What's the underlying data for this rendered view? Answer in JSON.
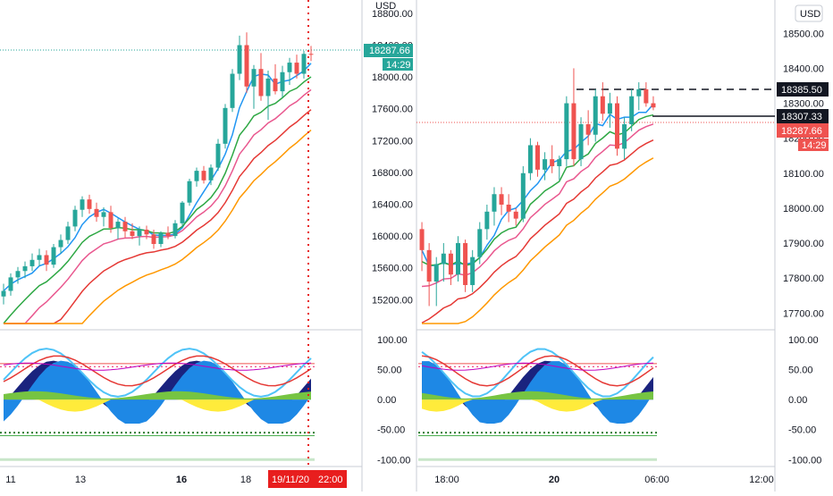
{
  "chart_data": [
    {
      "type": "candlestick",
      "currency": "USD",
      "x_ticks": [
        "11",
        "13",
        "16",
        "18"
      ],
      "y_ticks": [
        "18800.00",
        "18400.00",
        "18000.00",
        "17600.00",
        "17200.00",
        "16800.00",
        "16400.00",
        "16000.00",
        "15600.00",
        "15200.00"
      ],
      "ylim": [
        14900,
        18900
      ],
      "last_price": "18287.66",
      "countdown": "14:29",
      "crosshair_date": "19/11/20",
      "crosshair_time": "22:00",
      "ohlc": [
        {
          "o": 15240,
          "h": 15400,
          "l": 15140,
          "c": 15310
        },
        {
          "o": 15310,
          "h": 15530,
          "l": 15250,
          "c": 15480
        },
        {
          "o": 15480,
          "h": 15610,
          "l": 15400,
          "c": 15560
        },
        {
          "o": 15560,
          "h": 15680,
          "l": 15470,
          "c": 15620
        },
        {
          "o": 15620,
          "h": 15780,
          "l": 15560,
          "c": 15700
        },
        {
          "o": 15700,
          "h": 15840,
          "l": 15620,
          "c": 15760
        },
        {
          "o": 15760,
          "h": 15820,
          "l": 15560,
          "c": 15640
        },
        {
          "o": 15640,
          "h": 15900,
          "l": 15600,
          "c": 15860
        },
        {
          "o": 15860,
          "h": 16020,
          "l": 15780,
          "c": 15950
        },
        {
          "o": 15950,
          "h": 16180,
          "l": 15900,
          "c": 16120
        },
        {
          "o": 16120,
          "h": 16380,
          "l": 16060,
          "c": 16330
        },
        {
          "o": 16330,
          "h": 16500,
          "l": 16240,
          "c": 16460
        },
        {
          "o": 16460,
          "h": 16520,
          "l": 16280,
          "c": 16340
        },
        {
          "o": 16340,
          "h": 16420,
          "l": 16180,
          "c": 16240
        },
        {
          "o": 16240,
          "h": 16360,
          "l": 16120,
          "c": 16300
        },
        {
          "o": 16300,
          "h": 16380,
          "l": 16040,
          "c": 16100
        },
        {
          "o": 16100,
          "h": 16220,
          "l": 15960,
          "c": 16180
        },
        {
          "o": 16180,
          "h": 16240,
          "l": 15980,
          "c": 16060
        },
        {
          "o": 16060,
          "h": 16160,
          "l": 15960,
          "c": 16000
        },
        {
          "o": 16000,
          "h": 16120,
          "l": 15880,
          "c": 16080
        },
        {
          "o": 16080,
          "h": 16130,
          "l": 15960,
          "c": 16020
        },
        {
          "o": 16020,
          "h": 16080,
          "l": 15840,
          "c": 15900
        },
        {
          "o": 15900,
          "h": 16060,
          "l": 15860,
          "c": 16040
        },
        {
          "o": 16040,
          "h": 16120,
          "l": 15960,
          "c": 16000
        },
        {
          "o": 16000,
          "h": 16200,
          "l": 15970,
          "c": 16160
        },
        {
          "o": 16160,
          "h": 16440,
          "l": 16120,
          "c": 16420
        },
        {
          "o": 16420,
          "h": 16720,
          "l": 16380,
          "c": 16690
        },
        {
          "o": 16690,
          "h": 16860,
          "l": 16620,
          "c": 16820
        },
        {
          "o": 16820,
          "h": 16880,
          "l": 16660,
          "c": 16700
        },
        {
          "o": 16700,
          "h": 16900,
          "l": 16640,
          "c": 16860
        },
        {
          "o": 16860,
          "h": 17220,
          "l": 16820,
          "c": 17160
        },
        {
          "o": 17160,
          "h": 17660,
          "l": 17100,
          "c": 17610
        },
        {
          "o": 17610,
          "h": 18100,
          "l": 17560,
          "c": 18040
        },
        {
          "o": 18040,
          "h": 18520,
          "l": 17960,
          "c": 18400
        },
        {
          "o": 18400,
          "h": 18560,
          "l": 17800,
          "c": 17880
        },
        {
          "o": 17880,
          "h": 18150,
          "l": 17600,
          "c": 18100
        },
        {
          "o": 18100,
          "h": 18300,
          "l": 17700,
          "c": 17760
        },
        {
          "o": 17760,
          "h": 18080,
          "l": 17460,
          "c": 17980
        },
        {
          "o": 17980,
          "h": 18160,
          "l": 17780,
          "c": 17820
        },
        {
          "o": 17820,
          "h": 18140,
          "l": 17740,
          "c": 18060
        },
        {
          "o": 18060,
          "h": 18240,
          "l": 17900,
          "c": 18180
        },
        {
          "o": 18180,
          "h": 18280,
          "l": 17980,
          "c": 18040
        },
        {
          "o": 18040,
          "h": 18330,
          "l": 17980,
          "c": 18290
        },
        {
          "o": 18290,
          "h": 18390,
          "l": 18200,
          "c": 18288
        }
      ],
      "oscillator_ticks": [
        "100.00",
        "50.00",
        "0.00",
        "-50.00",
        "-100.00"
      ],
      "oscillator_ylim": [
        -110,
        115
      ]
    },
    {
      "type": "candlestick",
      "currency": "USD",
      "x_ticks": [
        "18:00",
        "20",
        "06:00",
        "12:00"
      ],
      "y_ticks": [
        "18500.00",
        "18400.00",
        "18300.00",
        "18200.00",
        "18100.00",
        "18000.00",
        "17900.00",
        "17800.00",
        "17700.00"
      ],
      "ylim": [
        17670,
        18580
      ],
      "resistance_label": "18385.50",
      "level_label": "18307.33",
      "last_price": "18287.66",
      "countdown": "14:29",
      "ohlc": [
        {
          "o": 17940,
          "h": 17960,
          "l": 17820,
          "c": 17880
        },
        {
          "o": 17880,
          "h": 17900,
          "l": 17720,
          "c": 17790
        },
        {
          "o": 17790,
          "h": 17860,
          "l": 17720,
          "c": 17840
        },
        {
          "o": 17840,
          "h": 17900,
          "l": 17790,
          "c": 17870
        },
        {
          "o": 17870,
          "h": 17880,
          "l": 17780,
          "c": 17810
        },
        {
          "o": 17810,
          "h": 17920,
          "l": 17790,
          "c": 17900
        },
        {
          "o": 17900,
          "h": 17910,
          "l": 17760,
          "c": 17780
        },
        {
          "o": 17780,
          "h": 17880,
          "l": 17760,
          "c": 17860
        },
        {
          "o": 17860,
          "h": 17960,
          "l": 17840,
          "c": 17940
        },
        {
          "o": 17940,
          "h": 18010,
          "l": 17910,
          "c": 17990
        },
        {
          "o": 17990,
          "h": 18060,
          "l": 17950,
          "c": 18040
        },
        {
          "o": 18040,
          "h": 18060,
          "l": 17980,
          "c": 18010
        },
        {
          "o": 18010,
          "h": 18040,
          "l": 17960,
          "c": 17990
        },
        {
          "o": 17990,
          "h": 18000,
          "l": 17950,
          "c": 17970
        },
        {
          "o": 17970,
          "h": 18120,
          "l": 17960,
          "c": 18100
        },
        {
          "o": 18100,
          "h": 18200,
          "l": 18080,
          "c": 18180
        },
        {
          "o": 18180,
          "h": 18190,
          "l": 18090,
          "c": 18110
        },
        {
          "o": 18110,
          "h": 18160,
          "l": 18080,
          "c": 18140
        },
        {
          "o": 18140,
          "h": 18180,
          "l": 18100,
          "c": 18120
        },
        {
          "o": 18120,
          "h": 18150,
          "l": 18080,
          "c": 18140
        },
        {
          "o": 18140,
          "h": 18320,
          "l": 18120,
          "c": 18300
        },
        {
          "o": 18300,
          "h": 18400,
          "l": 18120,
          "c": 18140
        },
        {
          "o": 18140,
          "h": 18260,
          "l": 18120,
          "c": 18240
        },
        {
          "o": 18240,
          "h": 18280,
          "l": 18180,
          "c": 18210
        },
        {
          "o": 18210,
          "h": 18340,
          "l": 18190,
          "c": 18320
        },
        {
          "o": 18320,
          "h": 18360,
          "l": 18250,
          "c": 18270
        },
        {
          "o": 18270,
          "h": 18330,
          "l": 18230,
          "c": 18300
        },
        {
          "o": 18300,
          "h": 18320,
          "l": 18150,
          "c": 18170
        },
        {
          "o": 18170,
          "h": 18260,
          "l": 18140,
          "c": 18240
        },
        {
          "o": 18240,
          "h": 18340,
          "l": 18220,
          "c": 18320
        },
        {
          "o": 18320,
          "h": 18360,
          "l": 18280,
          "c": 18340
        },
        {
          "o": 18340,
          "h": 18360,
          "l": 18290,
          "c": 18300
        },
        {
          "o": 18300,
          "h": 18320,
          "l": 18280,
          "c": 18288
        }
      ],
      "oscillator_ticks": [
        "100.00",
        "50.00",
        "0.00",
        "-50.00",
        "-100.00"
      ],
      "oscillator_ylim": [
        -110,
        115
      ]
    }
  ],
  "colors": {
    "up": "#26a69a",
    "down": "#ef5350",
    "price_label": "#26a69a",
    "crosshair": "#e81e1e",
    "ma_blue": "#2196f3",
    "ma_green": "#2ea844",
    "ma_pink": "#e9588f",
    "ma_red": "#e53935",
    "ma_orange": "#ff9800"
  }
}
